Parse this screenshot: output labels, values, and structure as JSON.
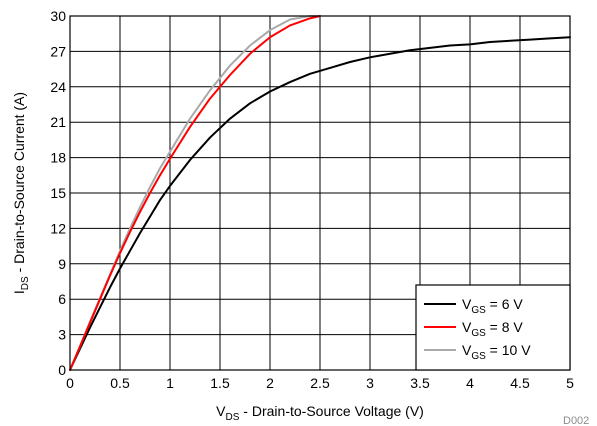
{
  "chart_data": {
    "type": "line",
    "title": "",
    "xlabel": {
      "main": "V",
      "sub": "DS",
      "rest": " - Drain-to-Source Voltage (V)"
    },
    "ylabel": {
      "main": "I",
      "sub": "DS",
      "rest": " - Drain-to-Source Current (A)"
    },
    "xlim": [
      0,
      5
    ],
    "ylim": [
      0,
      30
    ],
    "xticks": [
      "0",
      "0.5",
      "1",
      "1.5",
      "2",
      "2.5",
      "3",
      "3.5",
      "4",
      "4.5",
      "5"
    ],
    "yticks": [
      "0",
      "3",
      "6",
      "9",
      "12",
      "15",
      "18",
      "21",
      "24",
      "27",
      "30"
    ],
    "grid": true,
    "legend_position": "bottom-right",
    "series": [
      {
        "name": "V_GS = 6 V",
        "legend": {
          "main": "V",
          "sub": "GS",
          "rest": " = 6 V"
        },
        "color": "#000000",
        "x": [
          0,
          0.1,
          0.2,
          0.3,
          0.4,
          0.5,
          0.6,
          0.7,
          0.8,
          0.9,
          1.0,
          1.2,
          1.4,
          1.6,
          1.8,
          2.0,
          2.2,
          2.4,
          2.6,
          2.8,
          3.0,
          3.2,
          3.4,
          3.6,
          3.8,
          4.0,
          4.2,
          4.4,
          4.6,
          4.8,
          5.0
        ],
        "y": [
          0,
          1.8,
          3.6,
          5.3,
          7.0,
          8.6,
          10.1,
          11.6,
          13.0,
          14.4,
          15.6,
          17.8,
          19.7,
          21.3,
          22.6,
          23.6,
          24.4,
          25.1,
          25.6,
          26.1,
          26.5,
          26.8,
          27.1,
          27.3,
          27.5,
          27.6,
          27.8,
          27.9,
          28.0,
          28.1,
          28.2
        ]
      },
      {
        "name": "V_GS = 8 V",
        "legend": {
          "main": "V",
          "sub": "GS",
          "rest": " = 8 V"
        },
        "color": "#ff0000",
        "x": [
          0,
          0.1,
          0.2,
          0.3,
          0.4,
          0.5,
          0.6,
          0.7,
          0.8,
          0.9,
          1.0,
          1.2,
          1.4,
          1.6,
          1.8,
          2.0,
          2.2,
          2.4,
          2.5
        ],
        "y": [
          0,
          2.0,
          4.0,
          6.0,
          8.0,
          9.9,
          11.7,
          13.4,
          15.0,
          16.5,
          17.9,
          20.6,
          23.0,
          25.0,
          26.8,
          28.2,
          29.2,
          29.8,
          30.0
        ]
      },
      {
        "name": "V_GS = 10 V",
        "legend": {
          "main": "V",
          "sub": "GS",
          "rest": " = 10 V"
        },
        "color": "#aaaaaa",
        "x": [
          0,
          0.1,
          0.2,
          0.3,
          0.4,
          0.5,
          0.6,
          0.7,
          0.8,
          0.9,
          1.0,
          1.2,
          1.4,
          1.6,
          1.8,
          2.0,
          2.2,
          2.4,
          2.5
        ],
        "y": [
          0,
          2.0,
          4.1,
          6.1,
          8.1,
          10.1,
          12.0,
          13.8,
          15.5,
          17.1,
          18.5,
          21.3,
          23.7,
          25.8,
          27.5,
          28.8,
          29.7,
          30.0,
          30.0
        ]
      }
    ]
  },
  "figure_code": "D002"
}
